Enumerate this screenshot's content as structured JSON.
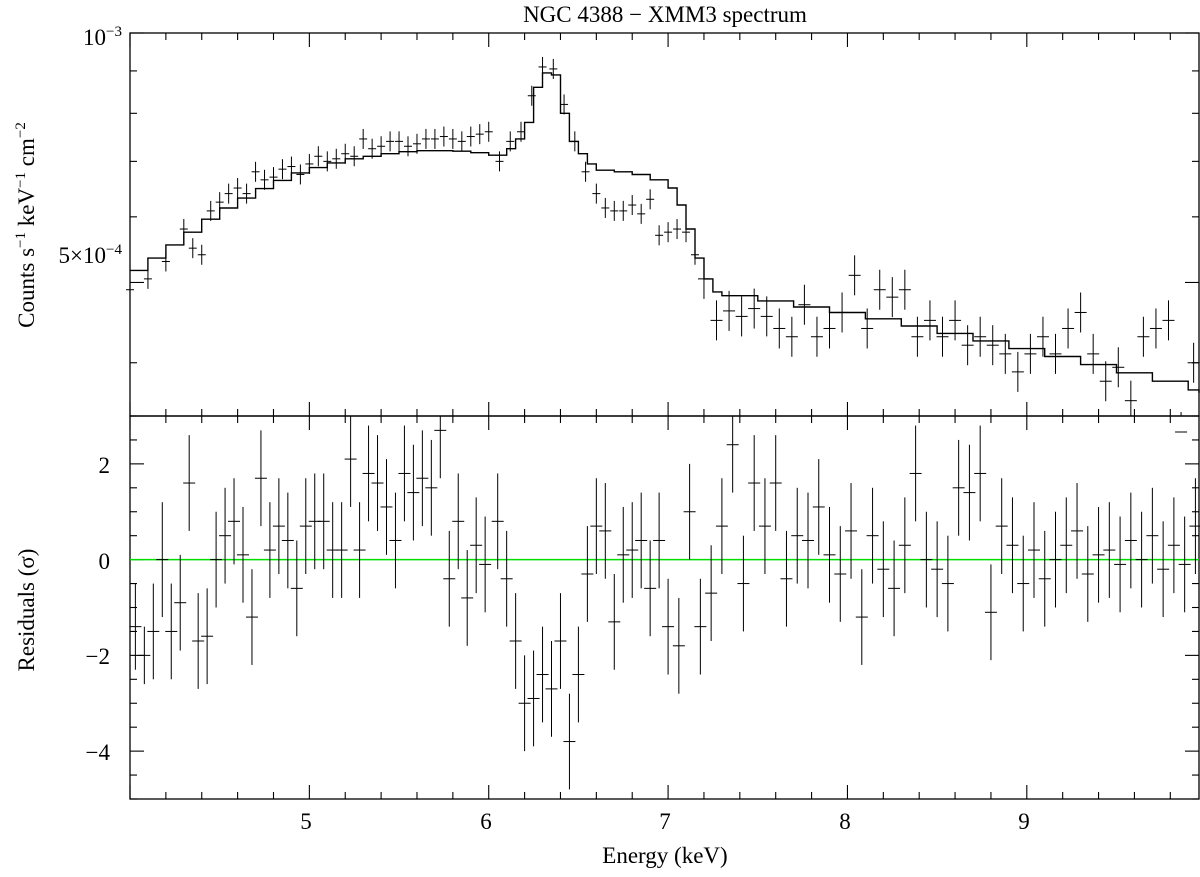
{
  "chart_data": [
    {
      "panel": "spectrum",
      "type": "line",
      "title": "NGC 4388 − XMM3 spectrum",
      "ylabel_parts": [
        "Counts s",
        "−1",
        " keV",
        "−1",
        " cm",
        "−2"
      ],
      "yscale": "log",
      "xlim": [
        4.0,
        9.96
      ],
      "ylim": [
        0.000345,
        0.001
      ],
      "ytick_labels": [
        {
          "value": 0.001,
          "base": "10",
          "exp": "−3"
        },
        {
          "value": 0.0005,
          "base": "5×10",
          "exp": "−4"
        }
      ],
      "model": {
        "name": "model",
        "x": [
          4.0,
          4.1,
          4.2,
          4.3,
          4.4,
          4.5,
          4.6,
          4.7,
          4.8,
          4.9,
          5.0,
          5.1,
          5.2,
          5.3,
          5.4,
          5.5,
          5.6,
          5.7,
          5.8,
          5.9,
          6.0,
          6.1,
          6.15,
          6.2,
          6.25,
          6.3,
          6.35,
          6.4,
          6.45,
          6.5,
          6.55,
          6.6,
          6.7,
          6.8,
          6.9,
          7.0,
          7.05,
          7.1,
          7.15,
          7.2,
          7.25,
          7.3,
          7.5,
          7.7,
          7.9,
          8.1,
          8.3,
          8.5,
          8.7,
          8.9,
          9.1,
          9.3,
          9.5,
          9.7,
          9.9,
          9.96
        ],
        "y": [
          0.000517,
          0.000535,
          0.000555,
          0.000575,
          0.000596,
          0.000615,
          0.000632,
          0.000649,
          0.000664,
          0.000678,
          0.000688,
          0.000697,
          0.000705,
          0.00071,
          0.000715,
          0.000719,
          0.000721,
          0.000721,
          0.00072,
          0.000717,
          0.000712,
          0.000725,
          0.000745,
          0.00078,
          0.00086,
          0.000895,
          0.00089,
          0.0008,
          0.00074,
          0.000715,
          0.000695,
          0.000683,
          0.00068,
          0.000675,
          0.000665,
          0.00065,
          0.00062,
          0.00058,
          0.000535,
          0.000505,
          0.000487,
          0.000482,
          0.000475,
          0.000467,
          0.00046,
          0.000452,
          0.000443,
          0.000434,
          0.000425,
          0.000416,
          0.000407,
          0.000398,
          0.000389,
          0.00038,
          0.000371,
          0.000368
        ]
      },
      "data": {
        "name": "data",
        "x": [
          4.0,
          4.1,
          4.2,
          4.3,
          4.35,
          4.4,
          4.45,
          4.5,
          4.55,
          4.6,
          4.65,
          4.7,
          4.75,
          4.8,
          4.85,
          4.9,
          4.95,
          5.0,
          5.05,
          5.1,
          5.15,
          5.2,
          5.25,
          5.3,
          5.35,
          5.4,
          5.45,
          5.5,
          5.55,
          5.6,
          5.65,
          5.7,
          5.75,
          5.8,
          5.85,
          5.9,
          5.95,
          6.0,
          6.06,
          6.12,
          6.18,
          6.24,
          6.3,
          6.36,
          6.42,
          6.48,
          6.54,
          6.6,
          6.65,
          6.7,
          6.75,
          6.8,
          6.85,
          6.9,
          6.95,
          7.0,
          7.05,
          7.1,
          7.15,
          7.2,
          7.27,
          7.34,
          7.41,
          7.48,
          7.55,
          7.62,
          7.69,
          7.76,
          7.83,
          7.9,
          7.97,
          8.04,
          8.11,
          8.18,
          8.25,
          8.32,
          8.39,
          8.46,
          8.53,
          8.6,
          8.67,
          8.74,
          8.81,
          8.88,
          8.95,
          9.02,
          9.09,
          9.16,
          9.23,
          9.3,
          9.37,
          9.44,
          9.51,
          9.58,
          9.65,
          9.72,
          9.79,
          9.86,
          9.93
        ],
        "y": [
          0.00049,
          0.000505,
          0.00053,
          0.00058,
          0.00055,
          0.00054,
          0.00061,
          0.000625,
          0.00064,
          0.00065,
          0.00064,
          0.00068,
          0.000665,
          0.00067,
          0.000685,
          0.00069,
          0.000675,
          0.000695,
          0.00071,
          0.0007,
          0.000705,
          0.000715,
          0.00071,
          0.000745,
          0.000725,
          0.00073,
          0.00074,
          0.00074,
          0.00073,
          0.000735,
          0.000745,
          0.000745,
          0.00075,
          0.000745,
          0.00074,
          0.00075,
          0.000755,
          0.00076,
          0.0007,
          0.00074,
          0.00076,
          0.00084,
          0.00091,
          0.000905,
          0.00082,
          0.00074,
          0.00068,
          0.00064,
          0.000615,
          0.00061,
          0.00061,
          0.00062,
          0.000605,
          0.00063,
          0.00057,
          0.000575,
          0.00058,
          0.000575,
          0.00054,
          0.000505,
          0.00045,
          0.000462,
          0.000455,
          0.000465,
          0.000455,
          0.00044,
          0.00043,
          0.00047,
          0.00043,
          0.00044,
          0.00046,
          0.00051,
          0.00044,
          0.00049,
          0.00048,
          0.00049,
          0.00043,
          0.00045,
          0.00043,
          0.00045,
          0.00042,
          0.00043,
          0.00042,
          0.00041,
          0.00039,
          0.00041,
          0.00043,
          0.00041,
          0.00044,
          0.00046,
          0.00041,
          0.00038,
          0.000395,
          0.00036,
          0.00043,
          0.00044,
          0.00045,
          0.00033,
          0.0004
        ]
      }
    },
    {
      "panel": "residuals",
      "type": "scatter",
      "xlabel": "Energy (keV)",
      "ylabel": "Residuals (σ)",
      "xlim": [
        4.0,
        9.96
      ],
      "ylim": [
        -5.0,
        3.0
      ],
      "xticks": [
        5,
        6,
        7,
        8,
        9
      ],
      "xtick_labels": [
        "5",
        "6",
        "7",
        "8",
        "9"
      ],
      "yticks": [
        2,
        0,
        -2,
        -4
      ],
      "ytick_labels": [
        "2",
        "0",
        "−2",
        "−4"
      ],
      "zero_line": {
        "value": 0,
        "color": "#00dd00"
      },
      "series": [
        {
          "name": "residuals",
          "x": [
            4.03,
            4.08,
            4.13,
            4.18,
            4.23,
            4.28,
            4.33,
            4.38,
            4.43,
            4.48,
            4.53,
            4.58,
            4.63,
            4.68,
            4.73,
            4.78,
            4.83,
            4.88,
            4.93,
            4.98,
            5.03,
            5.08,
            5.13,
            5.18,
            5.23,
            5.28,
            5.33,
            5.38,
            5.43,
            5.48,
            5.53,
            5.58,
            5.63,
            5.68,
            5.73,
            5.78,
            5.83,
            5.88,
            5.93,
            5.98,
            6.05,
            6.1,
            6.15,
            6.2,
            6.25,
            6.3,
            6.35,
            6.4,
            6.45,
            6.5,
            6.55,
            6.6,
            6.65,
            6.7,
            6.75,
            6.8,
            6.85,
            6.9,
            6.95,
            7.0,
            7.06,
            7.12,
            7.18,
            7.24,
            7.3,
            7.36,
            7.42,
            7.48,
            7.54,
            7.6,
            7.66,
            7.72,
            7.78,
            7.84,
            7.9,
            7.96,
            8.02,
            8.08,
            8.14,
            8.2,
            8.26,
            8.32,
            8.38,
            8.44,
            8.5,
            8.56,
            8.62,
            8.68,
            8.74,
            8.8,
            8.86,
            8.92,
            8.98,
            9.04,
            9.1,
            9.16,
            9.22,
            9.28,
            9.34,
            9.4,
            9.46,
            9.52,
            9.58,
            9.64,
            9.7,
            9.76,
            9.82,
            9.88,
            9.94
          ],
          "y": [
            -1.4,
            -2.0,
            -1.5,
            0.0,
            -1.5,
            -0.9,
            1.6,
            -1.7,
            -1.6,
            0.0,
            0.5,
            0.8,
            0.1,
            -1.2,
            1.7,
            0.2,
            0.7,
            0.4,
            -0.6,
            0.7,
            0.8,
            0.8,
            0.2,
            0.2,
            2.1,
            0.2,
            1.8,
            1.6,
            1.1,
            0.4,
            1.8,
            1.4,
            1.7,
            1.5,
            2.7,
            -0.4,
            0.8,
            -0.8,
            0.3,
            -0.1,
            0.8,
            -0.4,
            -1.7,
            -3.0,
            -2.9,
            -2.4,
            -2.7,
            -1.7,
            -3.8,
            -2.4,
            -0.3,
            0.7,
            0.6,
            -1.3,
            0.1,
            0.2,
            0.4,
            -0.6,
            0.4,
            -1.4,
            -1.8,
            1.0,
            -1.4,
            -0.7,
            0.7,
            2.4,
            -0.5,
            1.6,
            0.7,
            1.6,
            -0.4,
            0.5,
            0.4,
            1.1,
            0.1,
            -0.3,
            0.6,
            -1.2,
            0.5,
            -0.2,
            -0.6,
            0.3,
            1.8,
            0.0,
            -0.2,
            -0.5,
            1.5,
            1.4,
            1.8,
            -1.1,
            0.7,
            0.3,
            -0.5,
            0.2,
            -0.4,
            0.0,
            0.3,
            0.6,
            -0.3,
            0.1,
            0.2,
            -0.1,
            0.4,
            0.0,
            0.5,
            -0.2,
            0.3,
            -0.1,
            0.7
          ],
          "err": [
            0.9,
            0.6,
            1.0,
            1.2,
            1.0,
            1.0,
            1.0,
            1.0,
            1.0,
            1.0,
            1.0,
            0.9,
            1.0,
            1.0,
            1.0,
            1.0,
            1.0,
            1.0,
            1.0,
            1.0,
            1.0,
            1.0,
            1.0,
            1.0,
            1.0,
            1.0,
            1.0,
            1.0,
            1.0,
            1.0,
            1.0,
            1.0,
            1.0,
            1.0,
            1.0,
            1.0,
            1.0,
            1.0,
            1.0,
            1.0,
            1.0,
            1.0,
            1.0,
            1.0,
            1.0,
            1.0,
            1.0,
            1.0,
            1.0,
            1.0,
            1.0,
            1.0,
            1.0,
            1.0,
            1.0,
            1.0,
            1.0,
            1.0,
            1.0,
            1.0,
            1.0,
            1.0,
            1.0,
            1.0,
            1.0,
            1.0,
            1.0,
            1.0,
            1.0,
            1.0,
            1.0,
            1.0,
            1.0,
            1.0,
            1.0,
            1.0,
            1.0,
            1.0,
            1.0,
            1.0,
            1.0,
            1.0,
            1.0,
            1.0,
            1.0,
            1.0,
            1.0,
            1.0,
            1.0,
            1.0,
            1.0,
            1.0,
            1.0,
            1.0,
            1.0,
            1.0,
            1.0,
            1.0,
            1.0,
            1.0,
            1.0,
            1.0,
            1.0,
            1.0,
            1.0,
            1.0,
            1.0,
            1.0,
            1.0
          ]
        }
      ]
    }
  ]
}
